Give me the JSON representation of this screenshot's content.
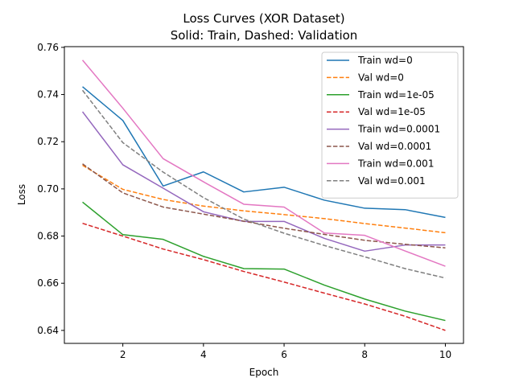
{
  "chart_data": {
    "type": "line",
    "title": "Loss Curves (XOR Dataset)",
    "subtitle": "Solid: Train, Dashed: Validation",
    "xlabel": "Epoch",
    "ylabel": "Loss",
    "xlim": [
      0.55,
      10.45
    ],
    "ylim": [
      0.6345,
      0.7603
    ],
    "xticks": [
      2,
      4,
      6,
      8,
      10
    ],
    "xtick_labels": [
      "2",
      "4",
      "6",
      "8",
      "10"
    ],
    "yticks": [
      0.64,
      0.66,
      0.68,
      0.7,
      0.72,
      0.74,
      0.76
    ],
    "ytick_labels": [
      "0.64",
      "0.66",
      "0.68",
      "0.70",
      "0.72",
      "0.74",
      "0.76"
    ],
    "grid": false,
    "legend_position": "top-right",
    "x": [
      1,
      2,
      3,
      4,
      5,
      6,
      7,
      8,
      9,
      10
    ],
    "series": [
      {
        "name": "Train wd=0",
        "color": "#1f77b4",
        "style": "solid",
        "values": [
          0.7433,
          0.729,
          0.7012,
          0.7072,
          0.6987,
          0.7007,
          0.6952,
          0.6918,
          0.6912,
          0.6879
        ]
      },
      {
        "name": "Val wd=0",
        "color": "#ff7f0e",
        "style": "dashed",
        "values": [
          0.71,
          0.6998,
          0.6955,
          0.6927,
          0.6907,
          0.6891,
          0.6874,
          0.6853,
          0.6834,
          0.6814
        ]
      },
      {
        "name": "Train wd=1e-05",
        "color": "#2ca02c",
        "style": "solid",
        "values": [
          0.6944,
          0.6806,
          0.6786,
          0.6714,
          0.6662,
          0.666,
          0.6592,
          0.6533,
          0.6482,
          0.6442
        ]
      },
      {
        "name": "Val wd=1e-05",
        "color": "#d62728",
        "style": "dashed",
        "values": [
          0.6854,
          0.68,
          0.6745,
          0.67,
          0.665,
          0.6605,
          0.6558,
          0.6512,
          0.646,
          0.64
        ]
      },
      {
        "name": "Train wd=0.0001",
        "color": "#9467bd",
        "style": "solid",
        "values": [
          0.7327,
          0.7102,
          0.7003,
          0.6903,
          0.6862,
          0.6862,
          0.679,
          0.6736,
          0.6762,
          0.6762
        ]
      },
      {
        "name": "Val wd=0.0001",
        "color": "#8c564b",
        "style": "dashed",
        "values": [
          0.7106,
          0.6983,
          0.6923,
          0.6893,
          0.6863,
          0.6833,
          0.6807,
          0.6782,
          0.6765,
          0.675
        ]
      },
      {
        "name": "Train wd=0.001",
        "color": "#e377c2",
        "style": "solid",
        "values": [
          0.7546,
          0.7342,
          0.7128,
          0.703,
          0.6935,
          0.6923,
          0.6813,
          0.6803,
          0.6737,
          0.6672
        ]
      },
      {
        "name": "Val wd=0.001",
        "color": "#7f7f7f",
        "style": "dashed",
        "values": [
          0.7418,
          0.7196,
          0.7071,
          0.6963,
          0.6872,
          0.6812,
          0.676,
          0.6712,
          0.6662,
          0.6622
        ]
      }
    ]
  }
}
